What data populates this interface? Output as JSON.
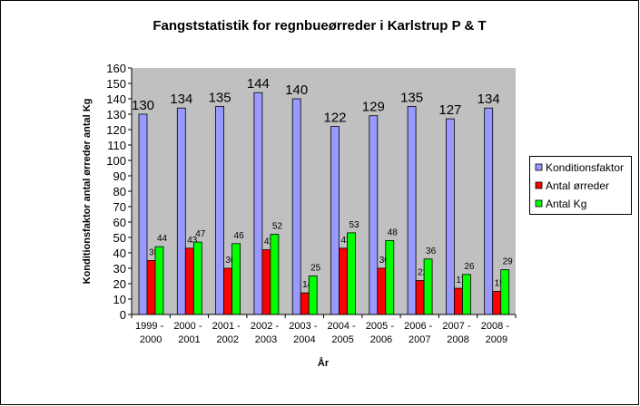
{
  "chart_data": {
    "type": "bar",
    "title": "Fangststatistik for regnbueørreder i Karlstrup P & T",
    "x_label": "År",
    "y_label": "Konditionsfaktor antal ørreder antal Kg",
    "categories": [
      "1999 - 2000",
      "2000 - 2001",
      "2001 - 2002",
      "2002 - 2003",
      "2003 - 2004",
      "2004 - 2005",
      "2005 - 2006",
      "2006 - 2007",
      "2007 - 2008",
      "2008 - 2009"
    ],
    "series": [
      {
        "name": "Konditionsfaktor",
        "color": "#9999ff",
        "values": [
          130,
          134,
          135,
          144,
          140,
          122,
          129,
          135,
          127,
          134
        ]
      },
      {
        "name": "Antal ørreder",
        "color": "#ff0000",
        "values": [
          35,
          43,
          30,
          42,
          14,
          43,
          30,
          22,
          17,
          15
        ]
      },
      {
        "name": "Antal Kg",
        "color": "#00ff00",
        "values": [
          44,
          47,
          46,
          52,
          25,
          53,
          48,
          36,
          26,
          29
        ]
      }
    ],
    "ylim": [
      0,
      160
    ],
    "yticks": [
      0,
      10,
      20,
      30,
      40,
      50,
      60,
      70,
      80,
      90,
      100,
      110,
      120,
      130,
      140,
      150,
      160
    ],
    "legend": "right"
  }
}
